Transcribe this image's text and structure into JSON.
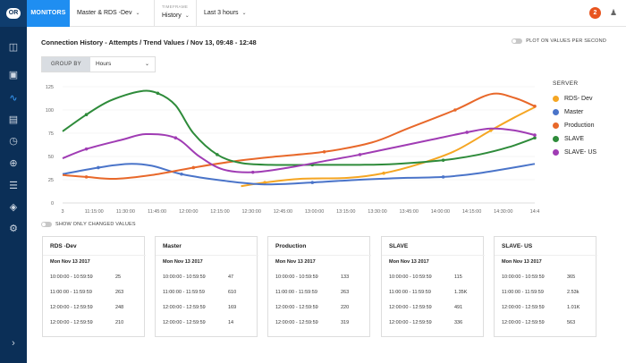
{
  "app": {
    "logo_text": "OR",
    "tab_monitors": "MONITORS",
    "source_select": "Master & RDS -Dev",
    "timeframe_label": "TIMEFRAME",
    "timeframe_value": "History",
    "range_select": "Last 3 hours",
    "notification_count": "2"
  },
  "sidebar": {
    "icons": [
      "database-icon",
      "monitor-icon",
      "activity-icon",
      "document-icon",
      "clock-icon",
      "search-zoom-icon",
      "sliders-icon",
      "layers-icon",
      "settings-icon",
      "expand-icon"
    ]
  },
  "panel": {
    "plot_toggle_label": "PLOT ON VALUES PER SECOND",
    "group_by_label": "GROUP BY",
    "group_by_value": "Hours",
    "changed_toggle_label": "SHOW ONLY CHANGED VALUES"
  },
  "chart_data": {
    "type": "line",
    "title": "Connection History - Attempts / Trend Values / Nov 13, 09:48 - 12:48",
    "xlabel": "",
    "ylabel": "",
    "ylim": [
      0,
      125
    ],
    "yticks": [
      "0",
      "25",
      "50",
      "75",
      "100",
      "125"
    ],
    "xticks": [
      "3",
      "11:15:00",
      "11:30:00",
      "11:45:00",
      "12:00:00",
      "12:15:00",
      "12:30:00",
      "12:45:00",
      "13:00:00",
      "13:15:00",
      "13:30:00",
      "13:45:00",
      "14:00:00",
      "14:15:00",
      "14:30:00",
      "14:4"
    ],
    "grid": true,
    "legend_title": "SERVER",
    "legend_position": "right",
    "series": [
      {
        "name": "RDS- Dev",
        "color": "#f5a623",
        "points": [
          [
            12.3,
            18
          ],
          [
            12.5,
            22
          ],
          [
            12.8,
            26
          ],
          [
            13.2,
            27
          ],
          [
            13.5,
            32
          ],
          [
            13.8,
            42
          ],
          [
            14.1,
            56
          ],
          [
            14.4,
            78
          ],
          [
            14.6,
            92
          ],
          [
            14.77,
            103
          ]
        ]
      },
      {
        "name": "Master",
        "color": "#4a74c9",
        "points": [
          [
            10.8,
            31
          ],
          [
            11.1,
            38
          ],
          [
            11.35,
            42
          ],
          [
            11.55,
            40
          ],
          [
            11.8,
            31
          ],
          [
            12.15,
            24
          ],
          [
            12.5,
            20
          ],
          [
            12.9,
            22
          ],
          [
            13.3,
            25
          ],
          [
            13.7,
            27
          ],
          [
            14.0,
            28
          ],
          [
            14.3,
            32
          ],
          [
            14.77,
            42
          ]
        ]
      },
      {
        "name": "Production",
        "color": "#e8682a",
        "points": [
          [
            10.8,
            30
          ],
          [
            11.0,
            28
          ],
          [
            11.25,
            26
          ],
          [
            11.55,
            30
          ],
          [
            11.9,
            38
          ],
          [
            12.25,
            45
          ],
          [
            12.6,
            50
          ],
          [
            13.0,
            55
          ],
          [
            13.4,
            65
          ],
          [
            13.7,
            80
          ],
          [
            14.1,
            100
          ],
          [
            14.4,
            117
          ],
          [
            14.6,
            113
          ],
          [
            14.77,
            104
          ]
        ]
      },
      {
        "name": "SLAVE",
        "color": "#2e8b3a",
        "points": [
          [
            10.8,
            77
          ],
          [
            11.0,
            95
          ],
          [
            11.2,
            110
          ],
          [
            11.45,
            120
          ],
          [
            11.6,
            118
          ],
          [
            11.75,
            105
          ],
          [
            11.9,
            75
          ],
          [
            12.1,
            52
          ],
          [
            12.3,
            43
          ],
          [
            12.55,
            41
          ],
          [
            12.9,
            41
          ],
          [
            13.3,
            41
          ],
          [
            13.6,
            42
          ],
          [
            14.0,
            46
          ],
          [
            14.3,
            52
          ],
          [
            14.55,
            60
          ],
          [
            14.77,
            70
          ]
        ]
      },
      {
        "name": "SLAVE- US",
        "color": "#a03cb4",
        "points": [
          [
            10.8,
            48
          ],
          [
            11.0,
            58
          ],
          [
            11.3,
            68
          ],
          [
            11.5,
            74
          ],
          [
            11.75,
            70
          ],
          [
            11.95,
            50
          ],
          [
            12.15,
            36
          ],
          [
            12.4,
            33
          ],
          [
            12.7,
            38
          ],
          [
            13.0,
            45
          ],
          [
            13.3,
            52
          ],
          [
            13.6,
            60
          ],
          [
            13.9,
            68
          ],
          [
            14.2,
            76
          ],
          [
            14.4,
            80
          ],
          [
            14.6,
            78
          ],
          [
            14.77,
            73
          ]
        ]
      }
    ]
  },
  "cards": [
    {
      "title": "RDS -Dev",
      "date": "Mon Nov 13 2017",
      "rows": [
        [
          "10:00:00 - 10:59:59",
          "25"
        ],
        [
          "11:00:00 - 11:59:59",
          "263"
        ],
        [
          "12:00:00 - 12:59:59",
          "248"
        ],
        [
          "12:00:00 - 12:59:59",
          "210"
        ]
      ]
    },
    {
      "title": "Master",
      "date": "Mon Nov 13 2017",
      "rows": [
        [
          "10:00:00 - 10:59:59",
          "47"
        ],
        [
          "11:00:00 - 11:59:59",
          "610"
        ],
        [
          "12:00:00 - 12:59:59",
          "169"
        ],
        [
          "12:00:00 - 12:59:59",
          "14"
        ]
      ]
    },
    {
      "title": "Production",
      "date": "Mon Nov 13 2017",
      "rows": [
        [
          "10:00:00 - 10:59:59",
          "133"
        ],
        [
          "11:00:00 - 11:59:59",
          "263"
        ],
        [
          "12:00:00 - 12:59:59",
          "220"
        ],
        [
          "12:00:00 - 12:59:59",
          "319"
        ]
      ]
    },
    {
      "title": "SLAVE",
      "date": "Mon Nov 13 2017",
      "rows": [
        [
          "10:00:00 - 10:59:59",
          "115"
        ],
        [
          "11:00:00 - 11:59:59",
          "1.35K"
        ],
        [
          "12:00:00 - 12:59:59",
          "491"
        ],
        [
          "12:00:00 - 12:59:59",
          "336"
        ]
      ]
    },
    {
      "title": "SLAVE- US",
      "date": "Mon Nov 13 2017",
      "rows": [
        [
          "10:00:00 - 10:59:59",
          "365"
        ],
        [
          "11:00:00 - 11:59:59",
          "2.53k"
        ],
        [
          "12:00:00 - 12:59:59",
          "1.01K"
        ],
        [
          "12:00:00 - 12:59:59",
          "563"
        ]
      ]
    }
  ]
}
